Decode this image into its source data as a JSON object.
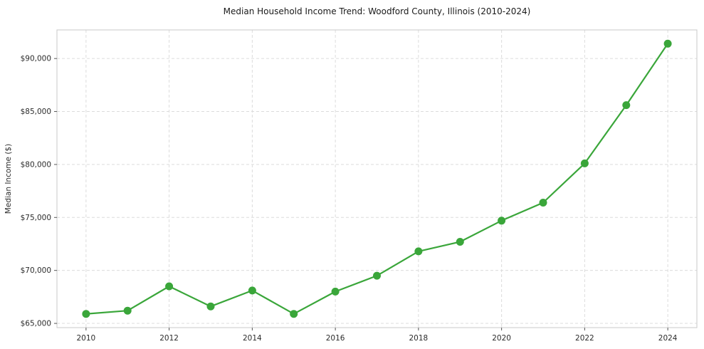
{
  "chart_data": {
    "type": "line",
    "title": "Median Household Income Trend: Woodford County, Illinois (2010-2024)",
    "xlabel": "",
    "ylabel": "Median Income ($)",
    "x": [
      2010,
      2011,
      2012,
      2013,
      2014,
      2015,
      2016,
      2017,
      2018,
      2019,
      2020,
      2021,
      2022,
      2023,
      2024
    ],
    "values": [
      65900,
      66200,
      68500,
      66600,
      68100,
      65900,
      68000,
      69500,
      71800,
      72700,
      74700,
      76400,
      80100,
      85600,
      91400
    ],
    "xticks": [
      2010,
      2012,
      2014,
      2016,
      2018,
      2020,
      2022,
      2024
    ],
    "xtick_labels": [
      "2010",
      "2012",
      "2014",
      "2016",
      "2018",
      "2020",
      "2022",
      "2024"
    ],
    "yticks": [
      65000,
      70000,
      75000,
      80000,
      85000,
      90000
    ],
    "ytick_labels": [
      "$65,000",
      "$70,000",
      "$75,000",
      "$80,000",
      "$85,000",
      "$90,000"
    ],
    "xlim": [
      2009.3,
      2024.7
    ],
    "ylim": [
      64600,
      92700
    ],
    "grid": true,
    "legend": "none",
    "line_color": "#3aa63a",
    "marker": "circle",
    "marker_radius": 5
  }
}
